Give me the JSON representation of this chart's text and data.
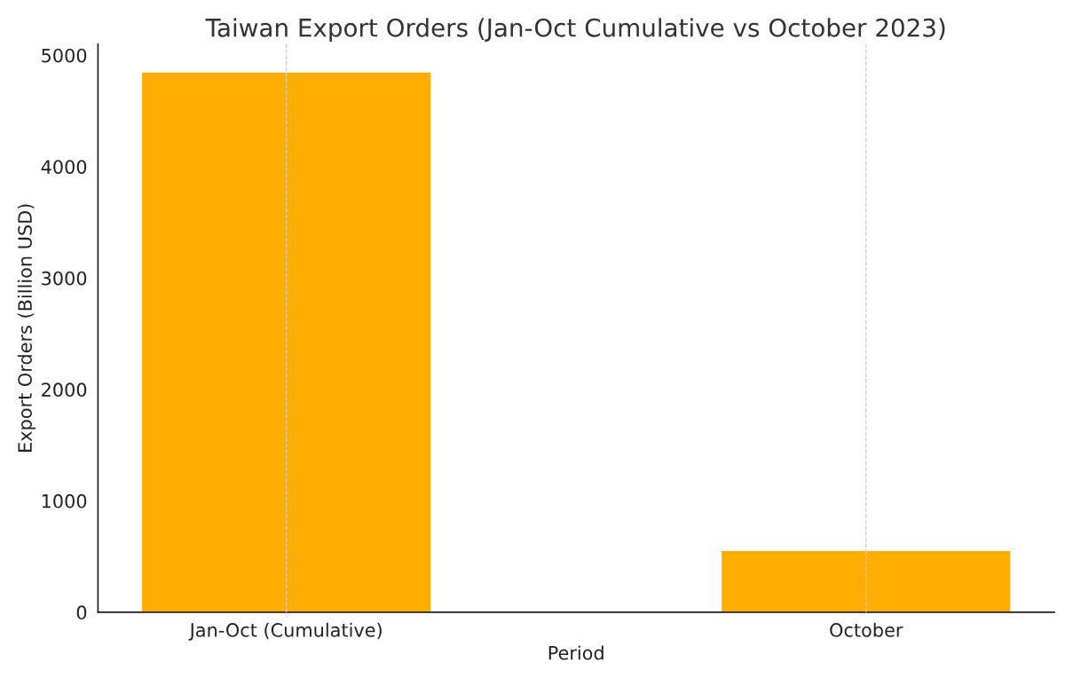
{
  "chart_data": {
    "type": "bar",
    "title": "Taiwan Export Orders (Jan-Oct Cumulative vs October 2023)",
    "xlabel": "Period",
    "ylabel": "Export Orders (Billion USD)",
    "categories": [
      "Jan-Oct (Cumulative)",
      "October"
    ],
    "values": [
      4850,
      555
    ],
    "color": "#ffae00",
    "ylim": [
      0,
      5100
    ],
    "yticks": [
      0,
      1000,
      2000,
      3000,
      4000,
      5000
    ],
    "grid": "x"
  }
}
